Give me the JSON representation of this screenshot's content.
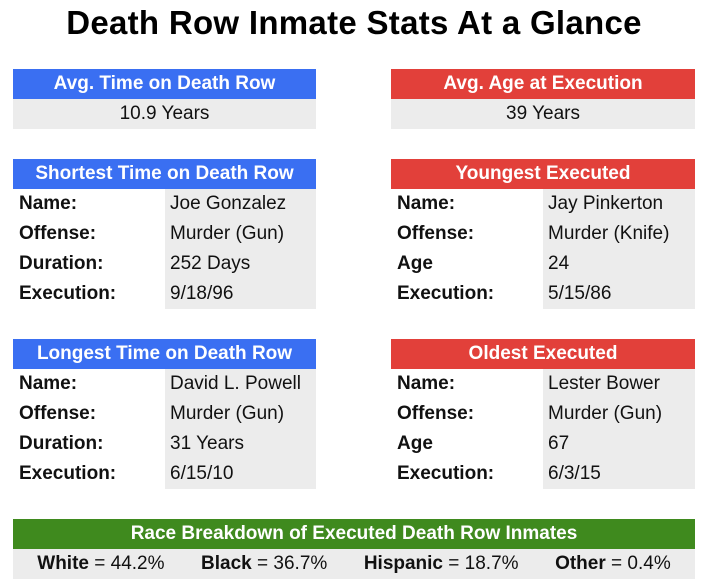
{
  "title": "Death Row Inmate Stats At a Glance",
  "avg_time": {
    "label": "Avg. Time on Death Row",
    "value": "10.9 Years"
  },
  "avg_age": {
    "label": "Avg. Age at Execution",
    "value": "39 Years"
  },
  "shortest": {
    "label": "Shortest Time on Death Row",
    "rows": [
      {
        "key": "Name:",
        "value": "Joe Gonzalez"
      },
      {
        "key": "Offense:",
        "value": "Murder (Gun)"
      },
      {
        "key": "Duration:",
        "value": "252 Days"
      },
      {
        "key": "Execution:",
        "value": "9/18/96"
      }
    ]
  },
  "youngest": {
    "label": "Youngest Executed",
    "rows": [
      {
        "key": "Name:",
        "value": "Jay Pinkerton"
      },
      {
        "key": "Offense:",
        "value": "Murder (Knife)"
      },
      {
        "key": "Age",
        "value": "24"
      },
      {
        "key": "Execution:",
        "value": "5/15/86"
      }
    ]
  },
  "longest": {
    "label": "Longest Time on Death Row",
    "rows": [
      {
        "key": "Name:",
        "value": "David L. Powell"
      },
      {
        "key": "Offense:",
        "value": "Murder (Gun)"
      },
      {
        "key": "Duration:",
        "value": "31 Years"
      },
      {
        "key": "Execution:",
        "value": "6/15/10"
      }
    ]
  },
  "oldest": {
    "label": "Oldest Executed",
    "rows": [
      {
        "key": "Name:",
        "value": "Lester Bower"
      },
      {
        "key": "Offense:",
        "value": "Murder (Gun)"
      },
      {
        "key": "Age",
        "value": "67"
      },
      {
        "key": "Execution:",
        "value": "6/3/15"
      }
    ]
  },
  "race": {
    "label": "Race Breakdown of Executed Death Row Inmates",
    "items": [
      {
        "name": "White",
        "value": "44.2%"
      },
      {
        "name": "Black",
        "value": "36.7%"
      },
      {
        "name": "Hispanic",
        "value": "18.7%"
      },
      {
        "name": "Other",
        "value": "0.4%"
      }
    ]
  },
  "colors": {
    "blue": "#3a6ff2",
    "red": "#e2403a",
    "green": "#3f8a1e",
    "cell": "#ececec"
  }
}
